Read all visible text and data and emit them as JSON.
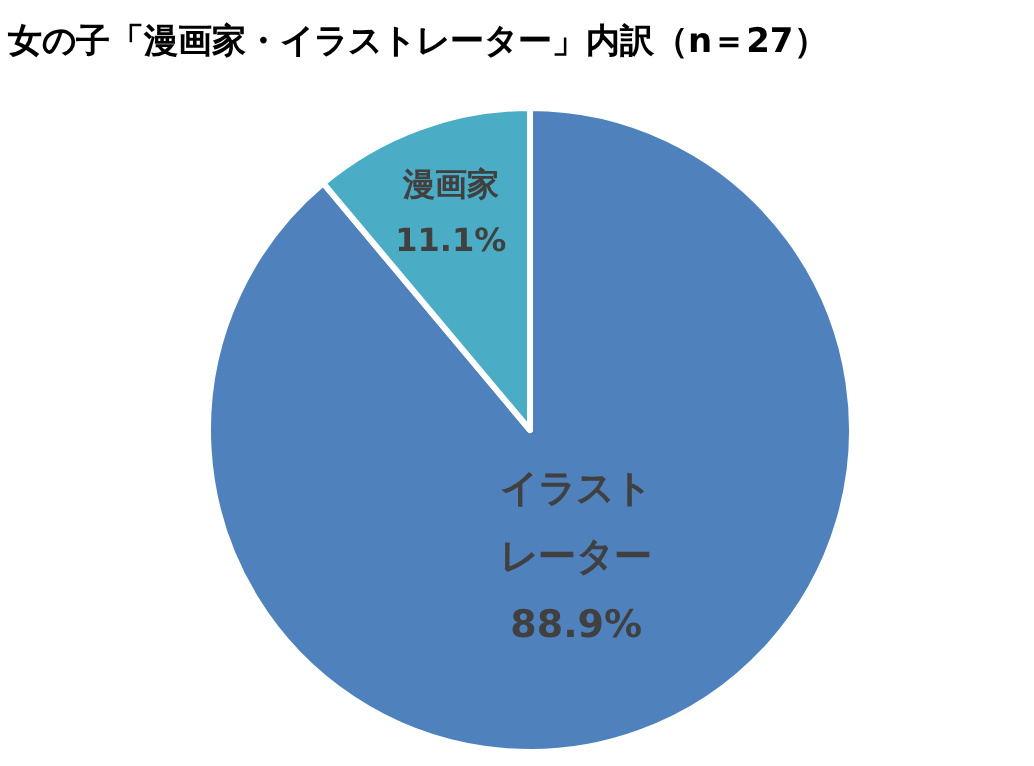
{
  "chart_data": {
    "type": "pie",
    "title": "女の子「漫画家・イラストレーター」内訳（n＝27）",
    "categories": [
      "イラストレーター",
      "漫画家"
    ],
    "values": [
      88.9,
      11.1
    ],
    "colors": [
      "#4f81bd",
      "#4bacc6"
    ],
    "value_labels": [
      "88.9%",
      "11.1%"
    ]
  }
}
